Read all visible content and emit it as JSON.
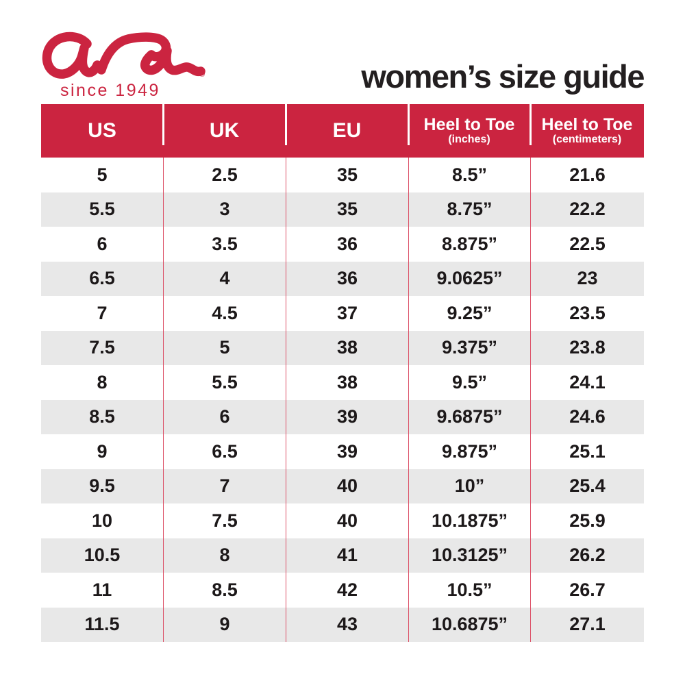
{
  "brand": {
    "name": "ara",
    "registered": "®",
    "tagline": "since 1949"
  },
  "title": "women’s size guide",
  "colors": {
    "brand_red": "#cb2440",
    "row_alt_gray": "#e8e8e8",
    "body_divider_red": "#dc4f66",
    "header_text": "#ffffff",
    "body_text": "#1c1819"
  },
  "chart_data": {
    "type": "table",
    "title": "women’s size guide",
    "columns": [
      {
        "label": "US",
        "sub": ""
      },
      {
        "label": "UK",
        "sub": ""
      },
      {
        "label": "EU",
        "sub": ""
      },
      {
        "label": "Heel to Toe",
        "sub": "(inches)"
      },
      {
        "label": "Heel to Toe",
        "sub": "(centimeters)"
      }
    ],
    "rows": [
      [
        "5",
        "2.5",
        "35",
        "8.5”",
        "21.6"
      ],
      [
        "5.5",
        "3",
        "35",
        "8.75”",
        "22.2"
      ],
      [
        "6",
        "3.5",
        "36",
        "8.875”",
        "22.5"
      ],
      [
        "6.5",
        "4",
        "36",
        "9.0625”",
        "23"
      ],
      [
        "7",
        "4.5",
        "37",
        "9.25”",
        "23.5"
      ],
      [
        "7.5",
        "5",
        "38",
        "9.375”",
        "23.8"
      ],
      [
        "8",
        "5.5",
        "38",
        "9.5”",
        "24.1"
      ],
      [
        "8.5",
        "6",
        "39",
        "9.6875”",
        "24.6"
      ],
      [
        "9",
        "6.5",
        "39",
        "9.875”",
        "25.1"
      ],
      [
        "9.5",
        "7",
        "40",
        "10”",
        "25.4"
      ],
      [
        "10",
        "7.5",
        "40",
        "10.1875”",
        "25.9"
      ],
      [
        "10.5",
        "8",
        "41",
        "10.3125”",
        "26.2"
      ],
      [
        "11",
        "8.5",
        "42",
        "10.5”",
        "26.7"
      ],
      [
        "11.5",
        "9",
        "43",
        "10.6875”",
        "27.1"
      ]
    ],
    "row_shading": "alternating white / light gray, first row white"
  }
}
